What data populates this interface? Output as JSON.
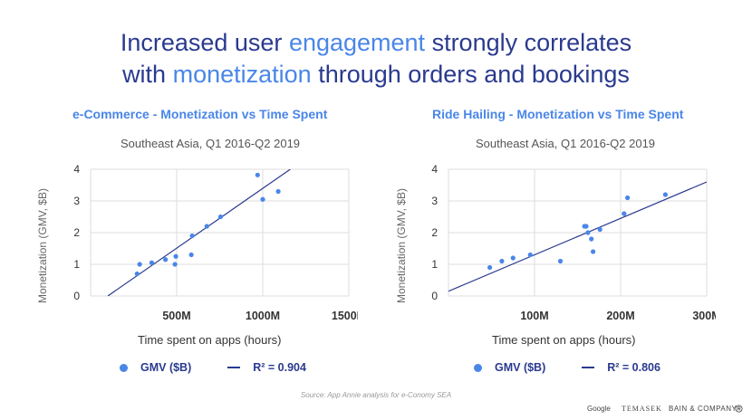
{
  "headline": {
    "part1": "Increased user ",
    "hl1": "engagement",
    "part2": " strongly correlates",
    "part3": "with ",
    "hl2": "monetization",
    "part4": " through orders and bookings"
  },
  "colors": {
    "accent": "#4a86e8",
    "navy": "#2a3a8f"
  },
  "chart_data": [
    {
      "type": "scatter",
      "title": "e-Commerce - Monetization vs Time Spent",
      "subtitle": "Southeast Asia, Q1 2016-Q2 2019",
      "xlabel": "Time spent on apps (hours)",
      "ylabel": "Monetization (GMV, $B)",
      "xlim": [
        0,
        1500
      ],
      "ylim": [
        0,
        4
      ],
      "xticks": [
        500,
        1000,
        1500
      ],
      "xtick_labels": [
        "500M",
        "1000M",
        "1500M"
      ],
      "yticks": [
        0,
        1,
        2,
        3,
        4
      ],
      "grid": true,
      "x": [
        270,
        285,
        355,
        435,
        490,
        495,
        585,
        590,
        675,
        755,
        970,
        1000,
        1090
      ],
      "y": [
        0.7,
        1.0,
        1.05,
        1.15,
        1.0,
        1.25,
        1.3,
        1.9,
        2.2,
        2.5,
        3.82,
        3.05,
        3.3
      ],
      "trendline": {
        "x": [
          100,
          1160
        ],
        "y": [
          0.0,
          4.0
        ]
      },
      "legend": {
        "series": "GMV ($B)",
        "fit": "R² = 0.904"
      }
    },
    {
      "type": "scatter",
      "title": "Ride Hailing - Monetization vs Time Spent",
      "subtitle": "Southeast Asia, Q1 2016-Q2 2019",
      "xlabel": "Time spent on apps (hours)",
      "ylabel": "Monetization (GMV, $B)",
      "xlim": [
        0,
        300
      ],
      "ylim": [
        0,
        4
      ],
      "xticks": [
        100,
        200,
        300
      ],
      "xtick_labels": [
        "100M",
        "200M",
        "300M"
      ],
      "yticks": [
        0,
        1,
        2,
        3,
        4
      ],
      "grid": true,
      "x": [
        48,
        62,
        75,
        95,
        130,
        158,
        160,
        162,
        166,
        168,
        176,
        204,
        208,
        252
      ],
      "y": [
        0.9,
        1.1,
        1.2,
        1.3,
        1.1,
        2.2,
        2.2,
        2.0,
        1.8,
        1.4,
        2.1,
        2.6,
        3.1,
        3.2
      ],
      "trendline": {
        "x": [
          0,
          300
        ],
        "y": [
          0.15,
          3.6
        ]
      },
      "legend": {
        "series": "GMV ($B)",
        "fit": "R² = 0.806"
      }
    }
  ],
  "source": "Source: App Annie analysis for e-Conomy SEA",
  "footer": {
    "google": "Google",
    "temasek": "TEMASEK",
    "bain": "BAIN & COMPANY"
  },
  "footer_icon": "registered-icon"
}
